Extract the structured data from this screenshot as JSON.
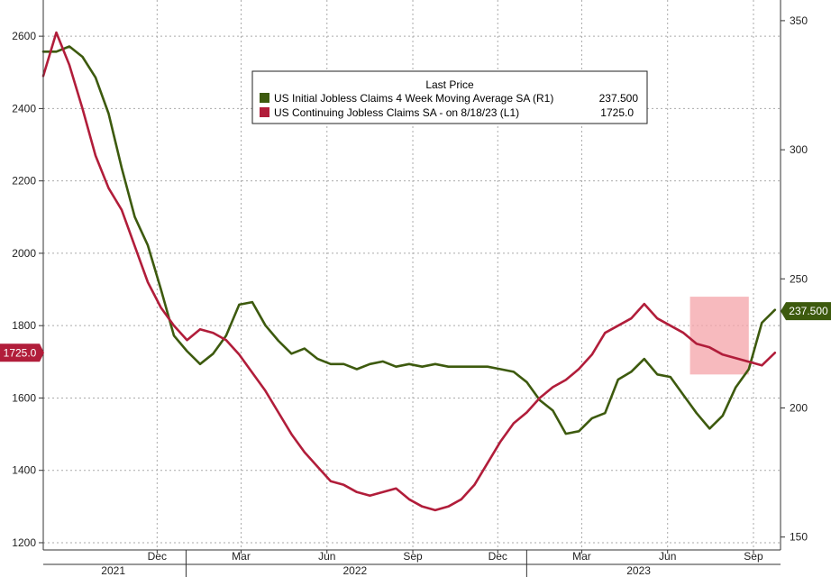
{
  "chart_data": {
    "type": "line",
    "title": "",
    "legend": {
      "header": "Last Price",
      "placement": "top-center",
      "entries": [
        {
          "label": "US Initial Jobless Claims 4 Week Moving Average SA  (R1)",
          "value": "237.500",
          "color": "#3d5a0e"
        },
        {
          "label": "US Continuing Jobless Claims SA -  on 8/18/23  (L1)",
          "value": "1725.0",
          "color": "#b11d3a"
        }
      ]
    },
    "x_axis": {
      "range": [
        "2021-08-01",
        "2023-09-30"
      ],
      "month_labels": [
        {
          "label": "Dec",
          "date": "2021-12-01"
        },
        {
          "label": "Mar",
          "date": "2022-03-01"
        },
        {
          "label": "Jun",
          "date": "2022-06-01"
        },
        {
          "label": "Sep",
          "date": "2022-09-01"
        },
        {
          "label": "Dec",
          "date": "2022-12-01"
        },
        {
          "label": "Mar",
          "date": "2023-03-01"
        },
        {
          "label": "Jun",
          "date": "2023-06-01"
        },
        {
          "label": "Sep",
          "date": "2023-09-01"
        }
      ],
      "year_labels": [
        {
          "label": "2021",
          "date": "2021-10-15"
        },
        {
          "label": "2022",
          "date": "2022-07-01"
        },
        {
          "label": "2023",
          "date": "2023-05-01"
        }
      ],
      "year_separators": [
        "2022-01-01",
        "2023-01-01"
      ]
    },
    "y_left": {
      "range": [
        1180,
        2700
      ],
      "ticks": [
        1200,
        1400,
        1600,
        1800,
        2000,
        2200,
        2400,
        2600
      ]
    },
    "y_right": {
      "range": [
        145,
        358
      ],
      "ticks": [
        150,
        200,
        250,
        300,
        350
      ]
    },
    "grid": true,
    "last_value_tags": {
      "left": "1725.0",
      "right": "237.500"
    },
    "highlight": {
      "x_range": [
        "2023-06-25",
        "2023-08-27"
      ],
      "y_range": [
        1665,
        1880
      ],
      "color": "#f4a3a8"
    },
    "series": [
      {
        "name": "US Initial Jobless Claims 4 Week Moving Average SA  (R1)",
        "axis": "right",
        "color": "#3d5a0e",
        "points": [
          [
            "2021-08-01",
            338
          ],
          [
            "2021-08-15",
            338
          ],
          [
            "2021-08-29",
            340
          ],
          [
            "2021-09-12",
            336
          ],
          [
            "2021-09-26",
            328
          ],
          [
            "2021-10-10",
            314
          ],
          [
            "2021-10-24",
            293
          ],
          [
            "2021-11-07",
            274
          ],
          [
            "2021-11-21",
            263
          ],
          [
            "2021-12-05",
            246
          ],
          [
            "2021-12-19",
            228
          ],
          [
            "2022-01-02",
            222
          ],
          [
            "2022-01-16",
            217
          ],
          [
            "2022-01-30",
            221
          ],
          [
            "2022-02-13",
            228
          ],
          [
            "2022-02-27",
            240
          ],
          [
            "2022-03-13",
            241
          ],
          [
            "2022-03-27",
            232
          ],
          [
            "2022-04-10",
            226
          ],
          [
            "2022-04-24",
            221
          ],
          [
            "2022-05-08",
            223
          ],
          [
            "2022-05-22",
            219
          ],
          [
            "2022-06-05",
            217
          ],
          [
            "2022-06-19",
            217
          ],
          [
            "2022-07-03",
            215
          ],
          [
            "2022-07-17",
            217
          ],
          [
            "2022-07-31",
            218
          ],
          [
            "2022-08-14",
            216
          ],
          [
            "2022-08-28",
            217
          ],
          [
            "2022-09-11",
            216
          ],
          [
            "2022-09-25",
            217
          ],
          [
            "2022-10-09",
            216
          ],
          [
            "2022-10-23",
            216
          ],
          [
            "2022-11-06",
            216
          ],
          [
            "2022-11-20",
            216
          ],
          [
            "2022-12-04",
            215
          ],
          [
            "2022-12-18",
            214
          ],
          [
            "2023-01-01",
            210
          ],
          [
            "2023-01-15",
            203
          ],
          [
            "2023-01-29",
            199
          ],
          [
            "2023-02-12",
            190
          ],
          [
            "2023-02-26",
            191
          ],
          [
            "2023-03-12",
            196
          ],
          [
            "2023-03-26",
            198
          ],
          [
            "2023-04-09",
            211
          ],
          [
            "2023-04-23",
            214
          ],
          [
            "2023-05-07",
            219
          ],
          [
            "2023-05-21",
            213
          ],
          [
            "2023-06-04",
            212
          ],
          [
            "2023-06-18",
            205
          ],
          [
            "2023-07-02",
            198
          ],
          [
            "2023-07-16",
            192
          ],
          [
            "2023-07-30",
            197
          ],
          [
            "2023-08-13",
            208
          ],
          [
            "2023-08-27",
            215
          ],
          [
            "2023-09-10",
            233
          ],
          [
            "2023-09-24",
            238
          ]
        ]
      },
      {
        "name": "US Continuing Jobless Claims SA -  on 8/18/23  (L1)",
        "axis": "left",
        "color": "#b11d3a",
        "points": [
          [
            "2021-08-01",
            2490
          ],
          [
            "2021-08-15",
            2610
          ],
          [
            "2021-08-29",
            2520
          ],
          [
            "2021-09-12",
            2400
          ],
          [
            "2021-09-26",
            2270
          ],
          [
            "2021-10-10",
            2180
          ],
          [
            "2021-10-24",
            2120
          ],
          [
            "2021-11-07",
            2020
          ],
          [
            "2021-11-21",
            1920
          ],
          [
            "2021-12-05",
            1850
          ],
          [
            "2021-12-19",
            1800
          ],
          [
            "2022-01-02",
            1760
          ],
          [
            "2022-01-16",
            1790
          ],
          [
            "2022-01-30",
            1780
          ],
          [
            "2022-02-13",
            1760
          ],
          [
            "2022-02-27",
            1720
          ],
          [
            "2022-03-13",
            1670
          ],
          [
            "2022-03-27",
            1620
          ],
          [
            "2022-04-10",
            1560
          ],
          [
            "2022-04-24",
            1500
          ],
          [
            "2022-05-08",
            1450
          ],
          [
            "2022-05-22",
            1410
          ],
          [
            "2022-06-05",
            1370
          ],
          [
            "2022-06-19",
            1360
          ],
          [
            "2022-07-03",
            1340
          ],
          [
            "2022-07-17",
            1330
          ],
          [
            "2022-07-31",
            1340
          ],
          [
            "2022-08-14",
            1350
          ],
          [
            "2022-08-28",
            1320
          ],
          [
            "2022-09-11",
            1300
          ],
          [
            "2022-09-25",
            1290
          ],
          [
            "2022-10-09",
            1300
          ],
          [
            "2022-10-23",
            1320
          ],
          [
            "2022-11-06",
            1360
          ],
          [
            "2022-11-20",
            1420
          ],
          [
            "2022-12-04",
            1480
          ],
          [
            "2022-12-18",
            1530
          ],
          [
            "2023-01-01",
            1560
          ],
          [
            "2023-01-15",
            1600
          ],
          [
            "2023-01-29",
            1630
          ],
          [
            "2023-02-12",
            1650
          ],
          [
            "2023-02-26",
            1680
          ],
          [
            "2023-03-12",
            1720
          ],
          [
            "2023-03-26",
            1780
          ],
          [
            "2023-04-09",
            1800
          ],
          [
            "2023-04-23",
            1820
          ],
          [
            "2023-05-07",
            1860
          ],
          [
            "2023-05-21",
            1820
          ],
          [
            "2023-06-04",
            1800
          ],
          [
            "2023-06-18",
            1780
          ],
          [
            "2023-07-02",
            1750
          ],
          [
            "2023-07-16",
            1740
          ],
          [
            "2023-07-30",
            1720
          ],
          [
            "2023-08-13",
            1710
          ],
          [
            "2023-08-27",
            1700
          ],
          [
            "2023-09-10",
            1690
          ],
          [
            "2023-09-24",
            1725
          ]
        ]
      }
    ]
  }
}
